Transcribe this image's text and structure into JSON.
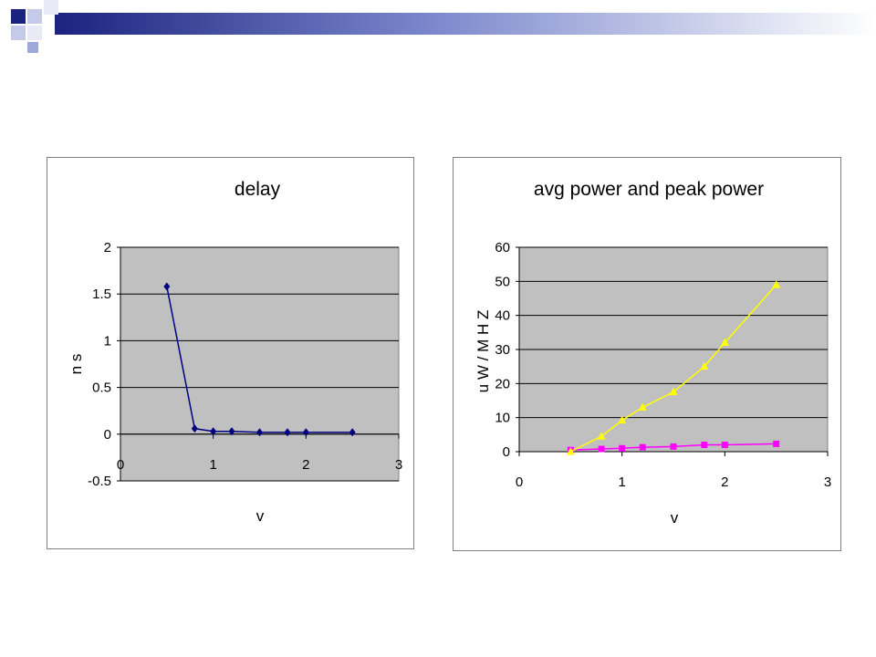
{
  "slide": {
    "colors": {
      "navy": "#1a237e",
      "banner_light": "#e6e8f5",
      "square_light": "#c5cae9"
    }
  },
  "chart_data": [
    {
      "type": "line",
      "title": "delay",
      "xlabel": "v",
      "ylabel": "n s",
      "xlim": [
        0,
        3
      ],
      "ylim": [
        -0.5,
        2
      ],
      "xticks": [
        "0",
        "1",
        "2",
        "3"
      ],
      "yticks": [
        "-0.5",
        "0",
        "0.5",
        "1",
        "1.5",
        "2"
      ],
      "grid": true,
      "legend": "none",
      "plot_background": "#c0c0c0",
      "series": [
        {
          "color": "#000080",
          "marker": "diamond",
          "x": [
            0.5,
            0.8,
            1.0,
            1.2,
            1.5,
            1.8,
            2.0,
            2.5
          ],
          "y": [
            1.58,
            0.06,
            0.03,
            0.03,
            0.02,
            0.02,
            0.02,
            0.02
          ]
        }
      ]
    },
    {
      "type": "line",
      "title": "avg power and peak power",
      "xlabel": "v",
      "ylabel": "u W / M H Z",
      "xlim": [
        0,
        3
      ],
      "ylim": [
        0,
        60
      ],
      "xticks": [
        "0",
        "1",
        "2",
        "3"
      ],
      "yticks": [
        "0",
        "10",
        "20",
        "30",
        "40",
        "50",
        "60"
      ],
      "grid": true,
      "legend": "none",
      "plot_background": "#c0c0c0",
      "series": [
        {
          "color": "#ff00ff",
          "marker": "square",
          "x": [
            0.5,
            0.8,
            1.0,
            1.2,
            1.5,
            1.8,
            2.0,
            2.5
          ],
          "y": [
            0.5,
            0.8,
            1.0,
            1.3,
            1.5,
            2.0,
            2.0,
            2.3
          ]
        },
        {
          "color": "#ffff00",
          "marker": "triangle",
          "x": [
            0.5,
            0.8,
            1.0,
            1.2,
            1.5,
            1.8,
            2.0,
            2.5
          ],
          "y": [
            0,
            4.5,
            9.2,
            13.0,
            17.5,
            25.0,
            32.0,
            49.0
          ]
        }
      ]
    }
  ]
}
